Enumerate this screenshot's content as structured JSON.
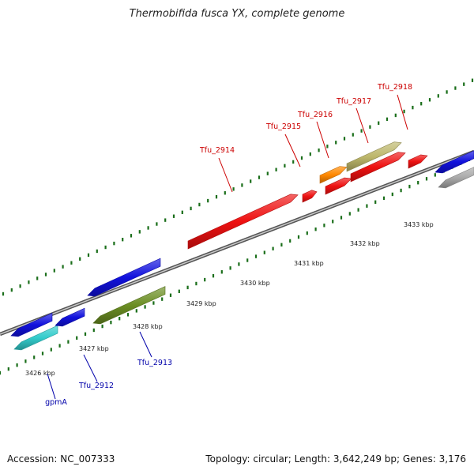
{
  "title": "Thermobifida fusca YX, complete genome",
  "footer": {
    "accession": "Accession: NC_007333",
    "info": "Topology: circular; Length: 3,642,249 bp; Genes: 3,176"
  },
  "scale_labels": [
    "3426 kbp",
    "3427 kbp",
    "3428 kbp",
    "3429 kbp",
    "3430 kbp",
    "3431 kbp",
    "3432 kbp",
    "3433 kbp"
  ],
  "genes": [
    {
      "label": "gpmA",
      "strand": "minus",
      "color": "#33cccc"
    },
    {
      "label": "Tfu_2912",
      "strand": "minus",
      "color": "#1111dd"
    },
    {
      "label": "Tfu_2913",
      "strand": "minus",
      "color": "#6b8e23"
    },
    {
      "label": "Tfu_2914",
      "strand": "plus",
      "color": "#ee1111"
    },
    {
      "label": "Tfu_2915",
      "strand": "plus",
      "color": "#ee1111"
    },
    {
      "label": "Tfu_2916",
      "strand": "plus",
      "color": "#ff8800"
    },
    {
      "label": "Tfu_2917",
      "strand": "plus",
      "color": "#bdb76b"
    },
    {
      "label": "Tfu_2918",
      "strand": "plus",
      "color": "#ee1111"
    }
  ],
  "unlabeled_features": [
    {
      "color": "#1111dd"
    },
    {
      "color": "#1111dd"
    },
    {
      "color": "#1111dd"
    },
    {
      "color": "#1111dd"
    },
    {
      "color": "#ee1111"
    },
    {
      "color": "#ee1111"
    },
    {
      "color": "#aaaaaa"
    }
  ],
  "colors": {
    "plus_label": "#cc0000",
    "minus_label": "#0000aa",
    "backbone": "#777777",
    "tick": "#1a6e1a"
  }
}
